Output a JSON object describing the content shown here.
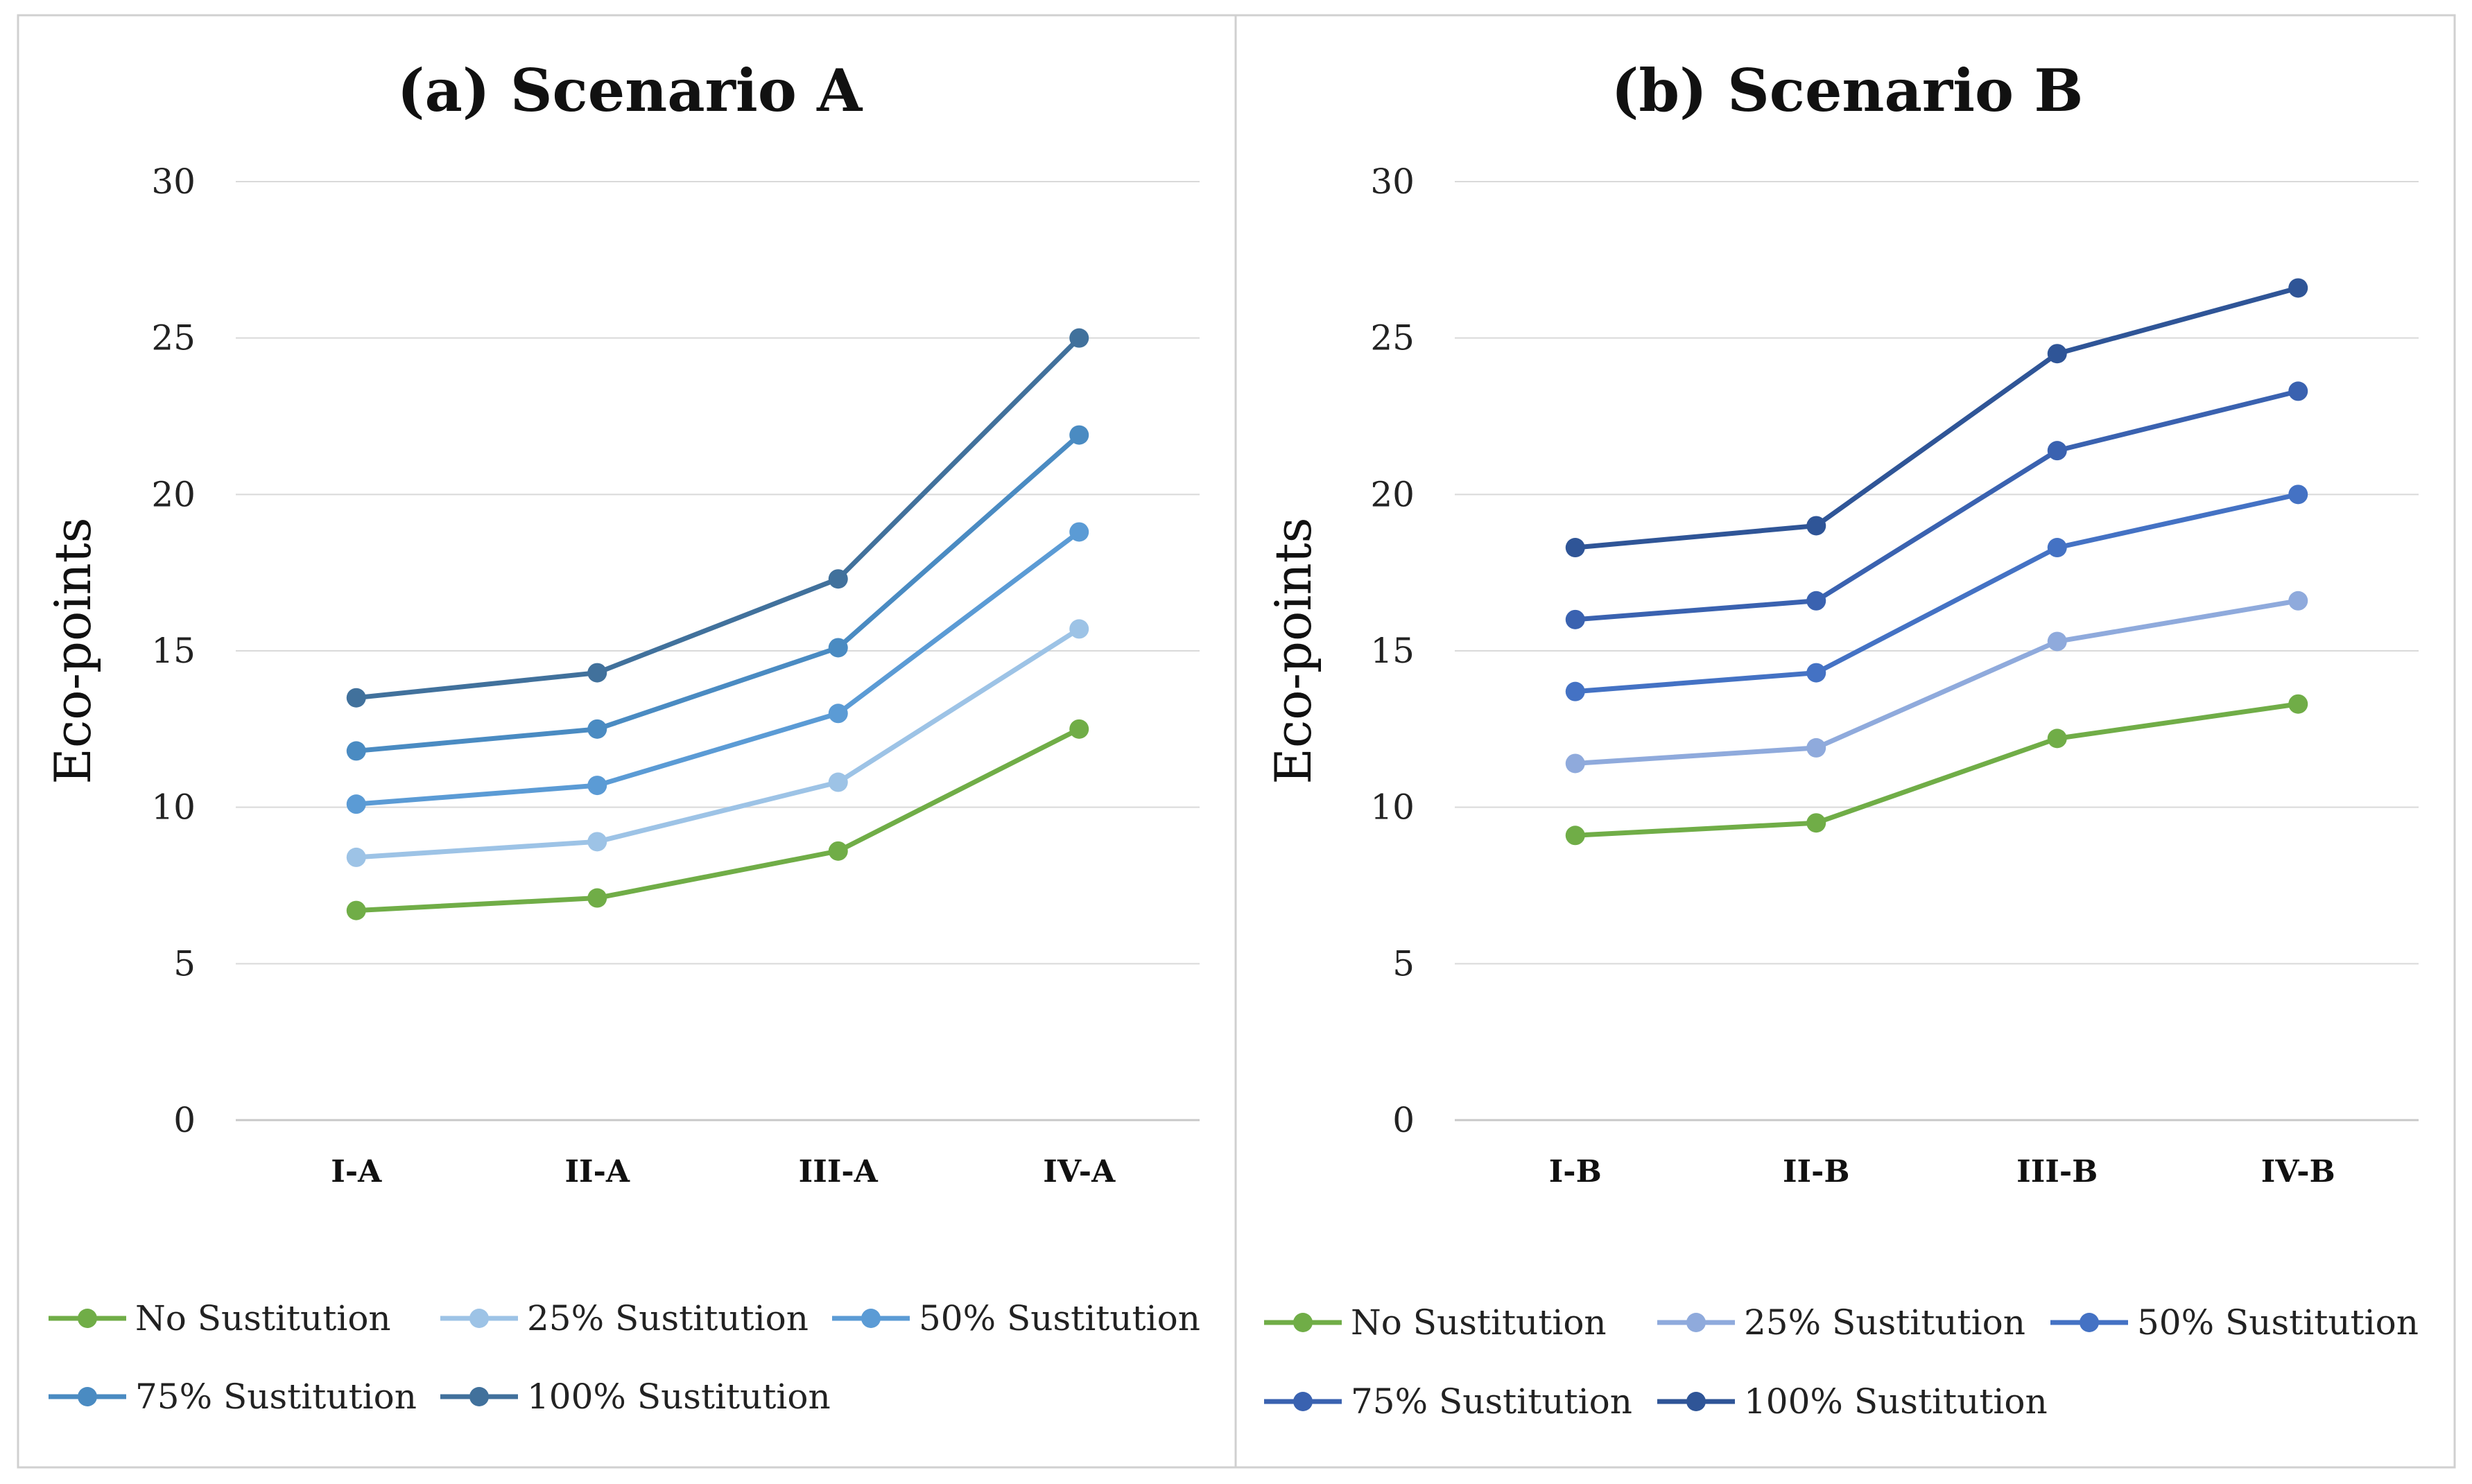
{
  "chart_data": [
    {
      "type": "line",
      "title": "(a) Scenario A",
      "xlabel": "",
      "ylabel": "Eco-points",
      "categories": [
        "I-A",
        "II-A",
        "III-A",
        "IV-A"
      ],
      "ylim": [
        0,
        30
      ],
      "yticks": [
        0,
        5,
        10,
        15,
        20,
        25,
        30
      ],
      "grid": true,
      "legend_position": "bottom",
      "series": [
        {
          "name": "No Sustitution",
          "color": "#70ad47",
          "values": [
            6.7,
            7.1,
            8.6,
            12.5
          ]
        },
        {
          "name": "25% Sustitution",
          "color": "#9dc3e6",
          "values": [
            8.4,
            8.9,
            10.8,
            15.7
          ]
        },
        {
          "name": "50% Sustitution",
          "color": "#5b9bd5",
          "values": [
            10.1,
            10.7,
            13.0,
            18.8
          ]
        },
        {
          "name": "75% Sustitution",
          "color": "#4a8bc2",
          "values": [
            11.8,
            12.5,
            15.1,
            21.9
          ]
        },
        {
          "name": "100% Sustitution",
          "color": "#41719c",
          "values": [
            13.5,
            14.3,
            17.3,
            25.0
          ]
        }
      ]
    },
    {
      "type": "line",
      "title": "(b) Scenario B",
      "xlabel": "",
      "ylabel": "Eco-points",
      "categories": [
        "I-B",
        "II-B",
        "III-B",
        "IV-B"
      ],
      "ylim": [
        0,
        30
      ],
      "yticks": [
        0,
        5,
        10,
        15,
        20,
        25,
        30
      ],
      "grid": true,
      "legend_position": "bottom",
      "series": [
        {
          "name": "No Sustitution",
          "color": "#70ad47",
          "values": [
            9.1,
            9.5,
            12.2,
            13.3
          ]
        },
        {
          "name": "25% Sustitution",
          "color": "#8faadc",
          "values": [
            11.4,
            11.9,
            15.3,
            16.6
          ]
        },
        {
          "name": "50% Sustitution",
          "color": "#4472c4",
          "values": [
            13.7,
            14.3,
            18.3,
            20.0
          ]
        },
        {
          "name": "75% Sustitution",
          "color": "#3a62b0",
          "values": [
            16.0,
            16.6,
            21.4,
            23.3
          ]
        },
        {
          "name": "100% Sustitution",
          "color": "#2f5597",
          "values": [
            18.3,
            19.0,
            24.5,
            26.6
          ]
        }
      ]
    }
  ]
}
